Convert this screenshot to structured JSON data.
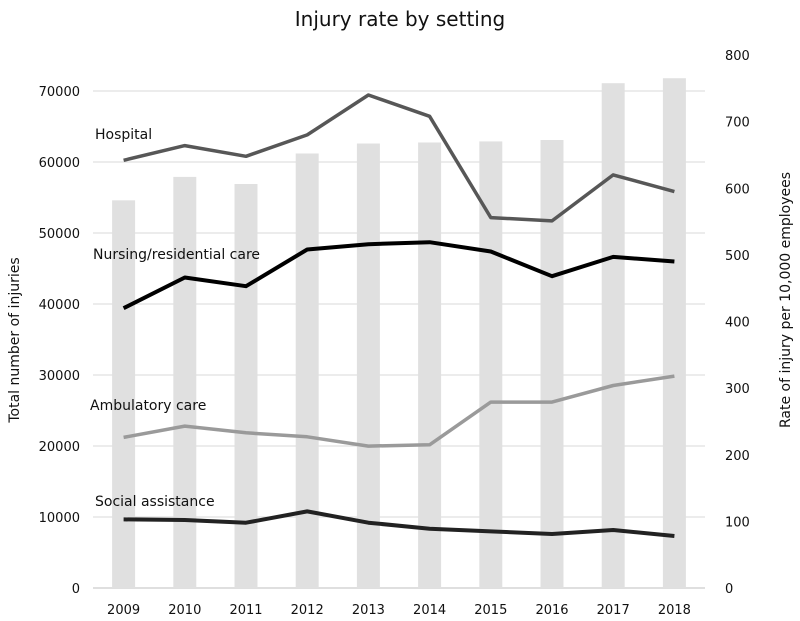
{
  "chart_data": {
    "type": "bar+line",
    "title": "Injury rate by setting",
    "ylabel_left": "Total number of injuries",
    "ylabel_right": "Rate of injury per 10,000 employees",
    "categories": [
      "2009",
      "2010",
      "2011",
      "2012",
      "2013",
      "2014",
      "2015",
      "2016",
      "2017",
      "2018"
    ],
    "ylim_left": [
      0,
      70000
    ],
    "yticks_left": [
      "0",
      "10000",
      "20000",
      "30000",
      "40000",
      "50000",
      "60000",
      "70000"
    ],
    "ylim_right": [
      0,
      800
    ],
    "yticks_right": [
      "0",
      "100",
      "200",
      "300",
      "400",
      "500",
      "600",
      "700",
      "800"
    ],
    "grid": true,
    "bars": {
      "axis": "left",
      "color": "#e0e0e0",
      "values": [
        54600,
        57900,
        56900,
        61200,
        62600,
        62750,
        62900,
        63100,
        71100,
        71800
      ]
    },
    "series": [
      {
        "name": "Hospital",
        "axis": "right",
        "color": "#575757",
        "values": [
          642,
          664,
          648,
          680,
          740,
          708,
          556,
          551,
          620,
          595
        ]
      },
      {
        "name": "Nursing/residential care",
        "axis": "right",
        "color": "#000000",
        "values": [
          420,
          466,
          453,
          508,
          516,
          519,
          505,
          468,
          497,
          490
        ]
      },
      {
        "name": "Ambulatory care",
        "axis": "right",
        "color": "#9a9a9a",
        "values": [
          226,
          243,
          233,
          227,
          213,
          215,
          279,
          279,
          304,
          318
        ]
      },
      {
        "name": "Social assistance",
        "axis": "right",
        "color": "#222222",
        "values": [
          103,
          102,
          98,
          115,
          98,
          89,
          85,
          81,
          87,
          78
        ]
      }
    ]
  }
}
